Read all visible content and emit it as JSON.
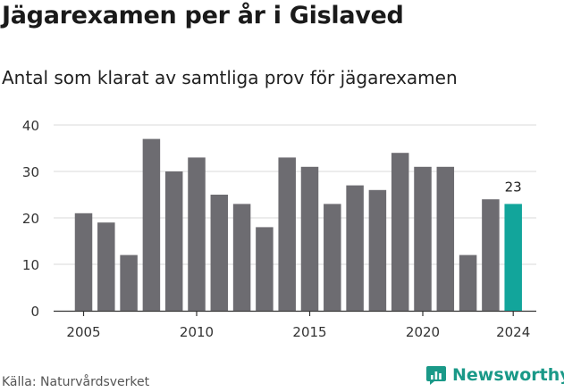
{
  "title": "Jägarexamen per år i Gislaved",
  "subtitle": "Antal som klarat av samtliga prov för jägarexamen",
  "source": "Källa: Naturvårdsverket",
  "brand": {
    "name": "Newsworthy",
    "icon": "newsworthy-logo-icon",
    "color": "#1a9988"
  },
  "colors": {
    "bar": "#6d6c71",
    "highlight": "#12a59b",
    "grid": "#d9d9d9",
    "axis": "#333333"
  },
  "chart_data": {
    "type": "bar",
    "x": [
      2005,
      2006,
      2007,
      2008,
      2009,
      2010,
      2011,
      2012,
      2013,
      2014,
      2015,
      2016,
      2017,
      2018,
      2019,
      2020,
      2021,
      2022,
      2023,
      2024
    ],
    "values": [
      21,
      19,
      12,
      37,
      30,
      33,
      25,
      23,
      18,
      33,
      31,
      23,
      27,
      26,
      34,
      31,
      31,
      12,
      24,
      23
    ],
    "x_ticks": [
      2005,
      2010,
      2015,
      2020,
      2024
    ],
    "y_ticks": [
      0,
      10,
      20,
      30,
      40
    ],
    "ylim": [
      0,
      40
    ],
    "highlight": {
      "x": 2024,
      "label": "23"
    },
    "grid": true
  }
}
